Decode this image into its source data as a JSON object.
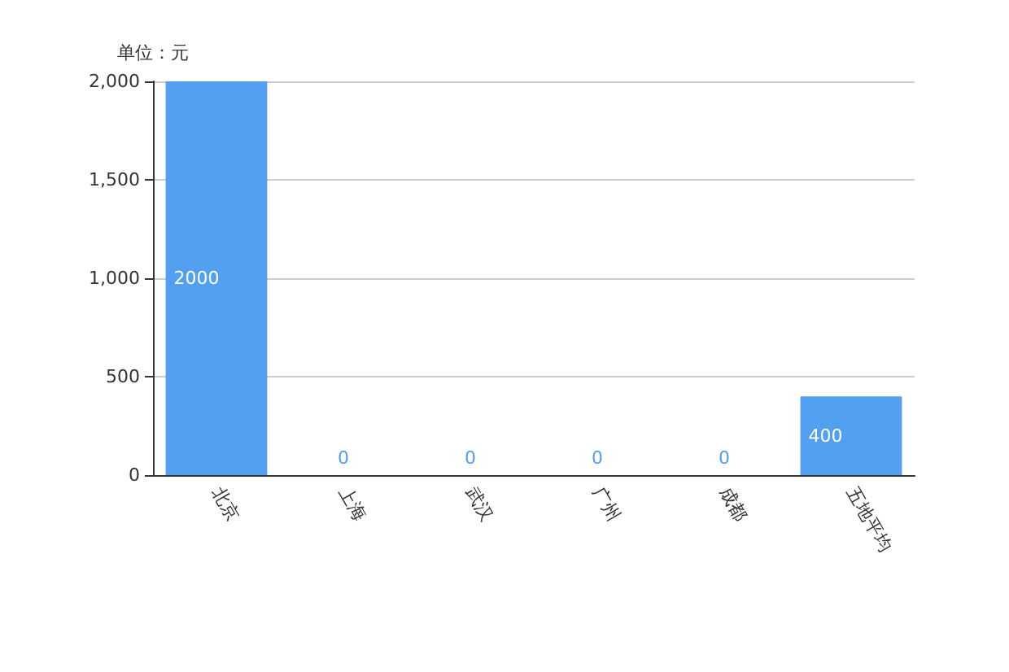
{
  "chart_data": {
    "type": "bar",
    "ylabel": "单位：元",
    "categories": [
      "北京",
      "上海",
      "武汉",
      "广州",
      "成都",
      "五地平均"
    ],
    "values": [
      2000,
      0,
      0,
      0,
      0,
      400
    ],
    "color": "#539ff0",
    "ylim": [
      0,
      2000
    ],
    "yticks": [
      0,
      500,
      {
        "value": 1000,
        "label": "1,000"
      },
      {
        "value": 1500,
        "label": "1,500"
      },
      {
        "value": 2000,
        "label": "2,000"
      }
    ],
    "grid": "y",
    "data_labels": true
  }
}
